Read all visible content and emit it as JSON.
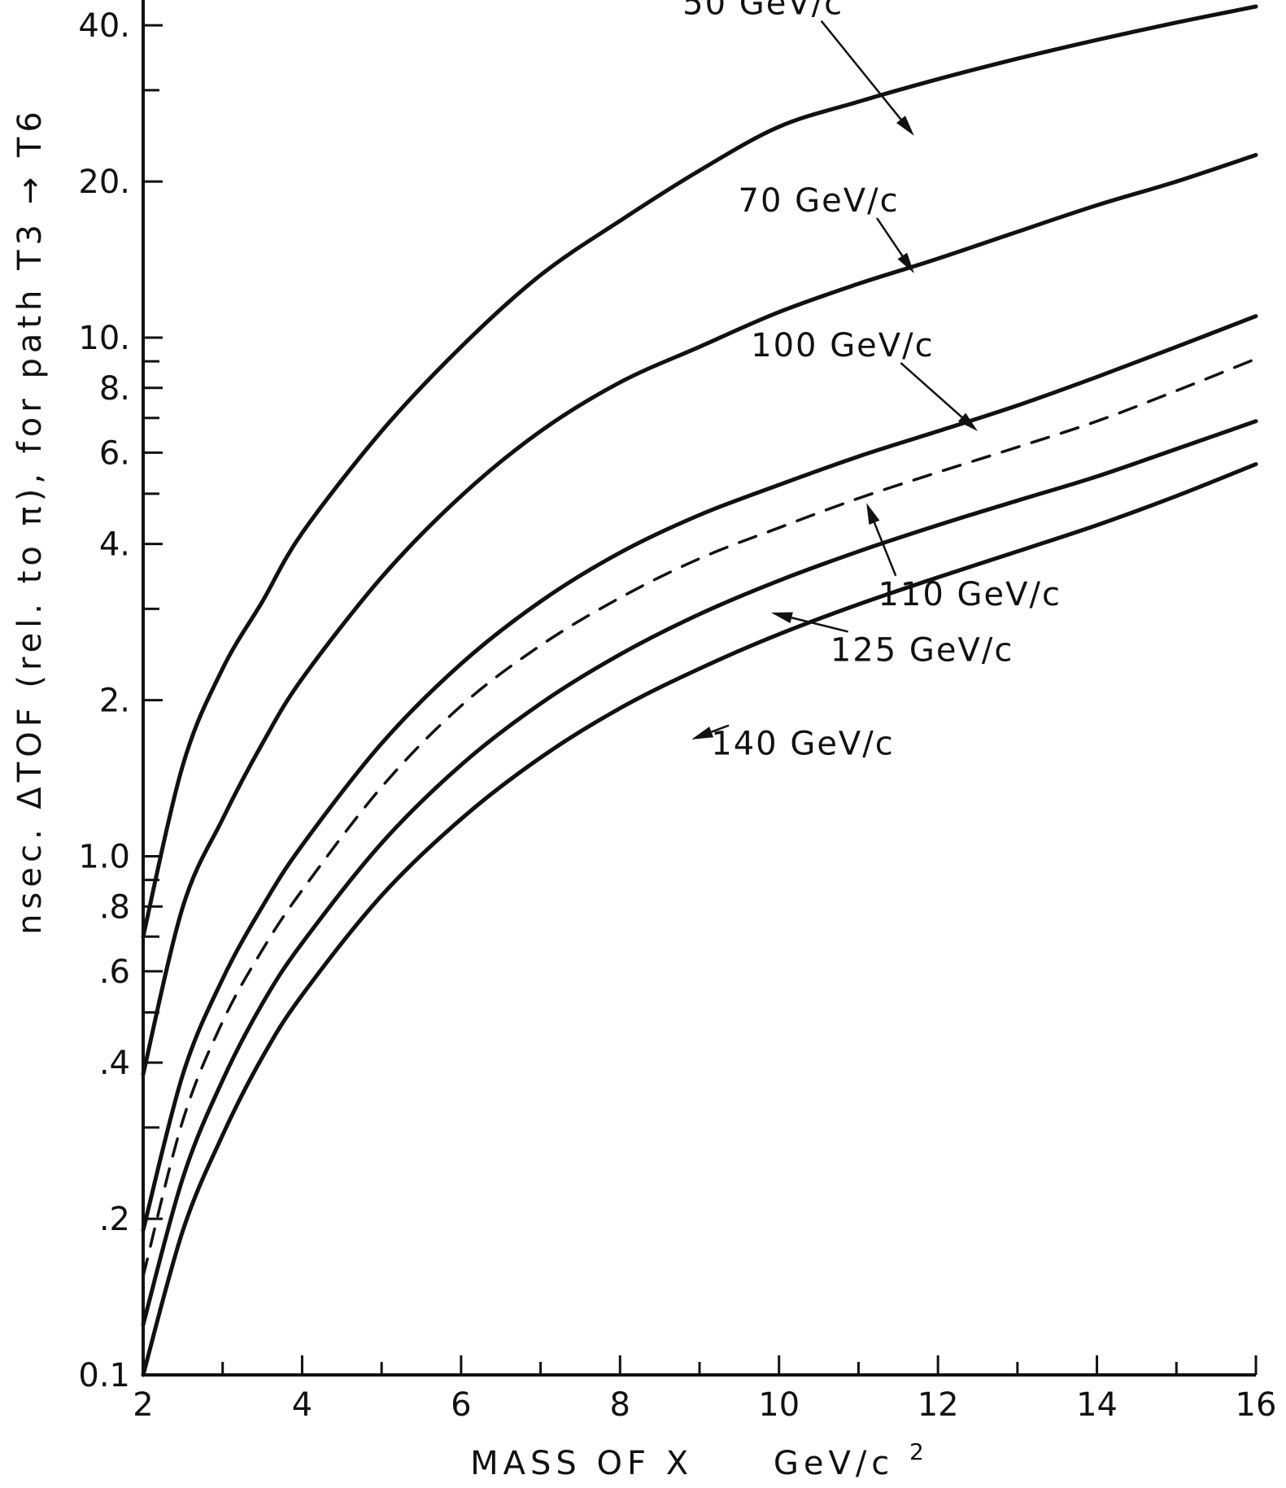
{
  "chart_data": {
    "type": "line",
    "xlabel": "MASS OF X",
    "xlabel_unit": "GeV/c",
    "xlabel_unit_sup": "2",
    "ylabel": "nsec. ΔTOF (rel. to π), for path T3 → T6",
    "xlim": [
      2,
      16
    ],
    "ylim": [
      0.1,
      45
    ],
    "yscale": "log",
    "grid": false,
    "x_major_ticks": [
      {
        "value": 2,
        "label": "2"
      },
      {
        "value": 4,
        "label": "4"
      },
      {
        "value": 6,
        "label": "6"
      },
      {
        "value": 8,
        "label": "8"
      },
      {
        "value": 10,
        "label": "10"
      },
      {
        "value": 12,
        "label": "12"
      },
      {
        "value": 14,
        "label": "14"
      },
      {
        "value": 16,
        "label": "16"
      }
    ],
    "x_minor_ticks": [
      3,
      5,
      7,
      9,
      11,
      13,
      15
    ],
    "y_labeled_ticks": [
      {
        "value": 0.1,
        "label": "0.1"
      },
      {
        "value": 0.2,
        "label": ".2"
      },
      {
        "value": 0.4,
        "label": ".4"
      },
      {
        "value": 0.6,
        "label": ".6"
      },
      {
        "value": 0.8,
        "label": ".8"
      },
      {
        "value": 1.0,
        "label": "1.0"
      },
      {
        "value": 2,
        "label": "2."
      },
      {
        "value": 4,
        "label": "4."
      },
      {
        "value": 6,
        "label": "6."
      },
      {
        "value": 8,
        "label": "8."
      },
      {
        "value": 10,
        "label": "10."
      },
      {
        "value": 20,
        "label": "20."
      },
      {
        "value": 40,
        "label": "40."
      }
    ],
    "y_minor_ticks": [
      0.3,
      0.5,
      0.7,
      0.9,
      3,
      5,
      7,
      9,
      30
    ],
    "series": [
      {
        "name": "50 GeV/c",
        "style": "solid",
        "label_at": {
          "x": 9.8,
          "y": 42
        },
        "pointer_to": {
          "x": 11.7,
          "y": 24.5
        },
        "x": [
          2,
          2.5,
          3,
          3.5,
          4,
          5,
          6,
          7,
          8,
          9,
          10,
          11,
          12,
          13,
          14,
          15,
          16
        ],
        "y": [
          0.7,
          1.5,
          2.3,
          3.1,
          4.2,
          6.6,
          9.6,
          13.2,
          16.8,
          21,
          25.5,
          28.5,
          31.5,
          34.5,
          37.5,
          40.5,
          43.5
        ]
      },
      {
        "name": "70 GeV/c",
        "style": "solid",
        "label_at": {
          "x": 10.5,
          "y": 17.5
        },
        "pointer_to": {
          "x": 11.7,
          "y": 13.3
        },
        "x": [
          2,
          2.5,
          3,
          3.5,
          4,
          5,
          6,
          7,
          8,
          9,
          10,
          11,
          12,
          13,
          14,
          15,
          16
        ],
        "y": [
          0.38,
          0.8,
          1.18,
          1.65,
          2.2,
          3.45,
          4.95,
          6.6,
          8.2,
          9.6,
          11.2,
          12.7,
          14.2,
          16,
          18,
          20,
          22.5
        ]
      },
      {
        "name": "100 GeV/c",
        "style": "solid",
        "label_at": {
          "x": 10.8,
          "y": 9.2
        },
        "pointer_to": {
          "x": 12.5,
          "y": 6.6
        },
        "x": [
          2,
          2.5,
          3,
          3.5,
          4,
          5,
          6,
          7,
          8,
          9,
          10,
          11,
          12,
          13,
          14,
          15,
          16
        ],
        "y": [
          0.19,
          0.38,
          0.58,
          0.8,
          1.05,
          1.65,
          2.35,
          3.1,
          3.85,
          4.55,
          5.2,
          5.9,
          6.6,
          7.4,
          8.4,
          9.6,
          11
        ]
      },
      {
        "name": "110 GeV/c",
        "style": "dashed",
        "label_at": {
          "x": 12.4,
          "y": 3.05
        },
        "pointer_to": {
          "x": 11.1,
          "y": 4.8
        },
        "x": [
          2,
          2.5,
          3,
          3.5,
          4,
          5,
          6,
          7,
          8,
          9,
          10,
          11,
          12,
          13,
          14,
          15,
          16
        ],
        "y": [
          0.155,
          0.31,
          0.48,
          0.66,
          0.86,
          1.36,
          1.95,
          2.55,
          3.15,
          3.75,
          4.3,
          4.9,
          5.5,
          6.15,
          6.9,
          7.9,
          9.1
        ]
      },
      {
        "name": "125 GeV/c",
        "style": "solid",
        "label_at": {
          "x": 11.8,
          "y": 2.38
        },
        "pointer_to": {
          "x": 9.9,
          "y": 2.95
        },
        "x": [
          2,
          2.5,
          3,
          3.5,
          4,
          5,
          6,
          7,
          8,
          9,
          10,
          11,
          12,
          13,
          14,
          15,
          16
        ],
        "y": [
          0.125,
          0.24,
          0.37,
          0.52,
          0.68,
          1.06,
          1.5,
          1.97,
          2.45,
          2.93,
          3.4,
          3.87,
          4.35,
          4.85,
          5.4,
          6.1,
          6.9
        ]
      },
      {
        "name": "140 GeV/c",
        "style": "solid",
        "label_at": {
          "x": 10.3,
          "y": 1.57
        },
        "pointer_to": {
          "x": 8.9,
          "y": 1.68
        },
        "x": [
          2,
          2.5,
          3,
          3.5,
          4,
          5,
          6,
          7,
          8,
          9,
          10,
          11,
          12,
          13,
          14,
          15,
          16
        ],
        "y": [
          0.1,
          0.19,
          0.29,
          0.41,
          0.54,
          0.84,
          1.18,
          1.55,
          1.93,
          2.3,
          2.68,
          3.06,
          3.45,
          3.87,
          4.35,
          4.95,
          5.7
        ]
      }
    ]
  }
}
